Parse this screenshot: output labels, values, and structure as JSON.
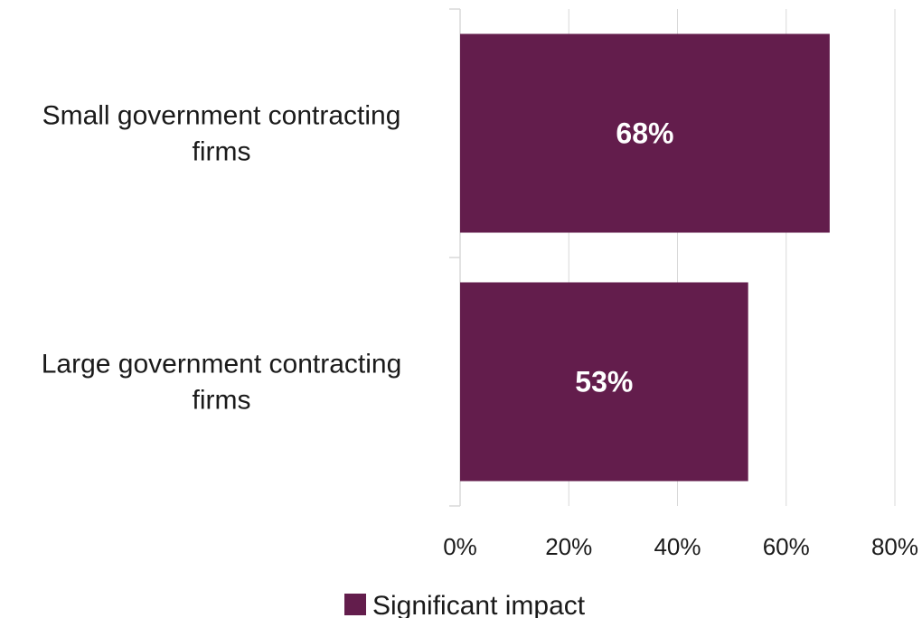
{
  "chart_data": {
    "type": "bar",
    "orientation": "horizontal",
    "categories": [
      [
        "Small government contracting",
        "firms"
      ],
      [
        "Large government contracting",
        "firms"
      ]
    ],
    "series": [
      {
        "name": "Significant impact",
        "values": [
          68,
          53
        ],
        "data_labels": [
          "68%",
          "53%"
        ],
        "color": "#631d4c"
      }
    ],
    "xlim": [
      0,
      80
    ],
    "ticks": [
      0,
      20,
      40,
      60,
      80
    ],
    "tick_labels": [
      "0%",
      "20%",
      "40%",
      "60%",
      "80%"
    ],
    "grid": true,
    "legend_position": "bottom"
  }
}
